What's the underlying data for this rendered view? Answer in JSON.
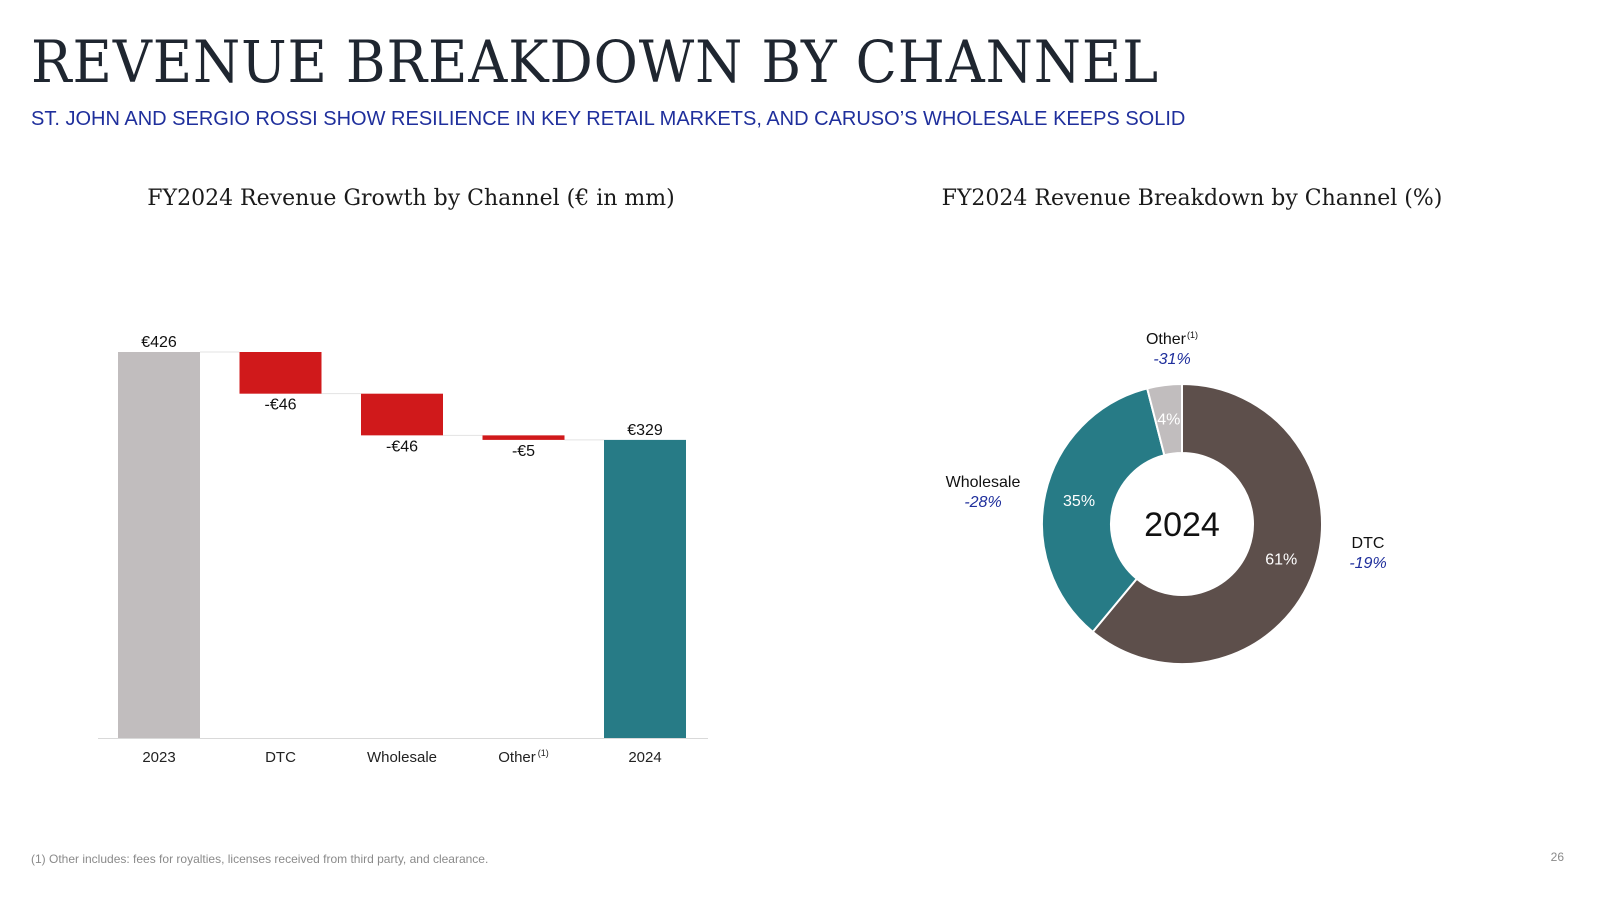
{
  "header": {
    "title": "REVENUE BREAKDOWN BY CHANNEL",
    "subtitle": "ST. JOHN AND SERGIO ROSSI SHOW RESILIENCE IN KEY RETAIL MARKETS, AND CARUSO’S WHOLESALE KEEPS SOLID"
  },
  "chart_data": [
    {
      "type": "waterfall",
      "title": "FY2024 Revenue Growth by Channel (€ in mm)",
      "categories": [
        "2023",
        "DTC",
        "Wholesale",
        "Other",
        "2024"
      ],
      "category_superscripts": [
        "",
        "",
        "",
        "(1)",
        ""
      ],
      "values": [
        426,
        -46,
        -46,
        -5,
        329
      ],
      "kinds": [
        "total",
        "delta",
        "delta",
        "delta",
        "total"
      ],
      "labels": [
        "€426",
        "-€46",
        "-€46",
        "-€5",
        "€329"
      ],
      "ylim": [
        0,
        426
      ],
      "colors": {
        "start": "#c1bdbe",
        "negative": "#d0191b",
        "end": "#277b86",
        "axis": "#d9d9d9",
        "connector": "#e3e3e3"
      }
    },
    {
      "type": "donut",
      "title": "FY2024 Revenue Breakdown by Channel (%)",
      "center_label": "2024",
      "slices": [
        {
          "name": "DTC",
          "share": 61,
          "share_label": "61%",
          "growth_label": "-19%",
          "color": "#5d4f4b",
          "superscript": ""
        },
        {
          "name": "Wholesale",
          "share": 35,
          "share_label": "35%",
          "growth_label": "-28%",
          "color": "#277b86",
          "superscript": ""
        },
        {
          "name": "Other",
          "share": 4,
          "share_label": "4%",
          "growth_label": "-31%",
          "color": "#c1bdbe",
          "superscript": "(1)"
        }
      ],
      "colors": {
        "growth": "#1f2f9c"
      }
    }
  ],
  "footer": {
    "footnote": "(1) Other includes: fees for royalties, licenses received from third party, and clearance.",
    "page_number": "26"
  }
}
